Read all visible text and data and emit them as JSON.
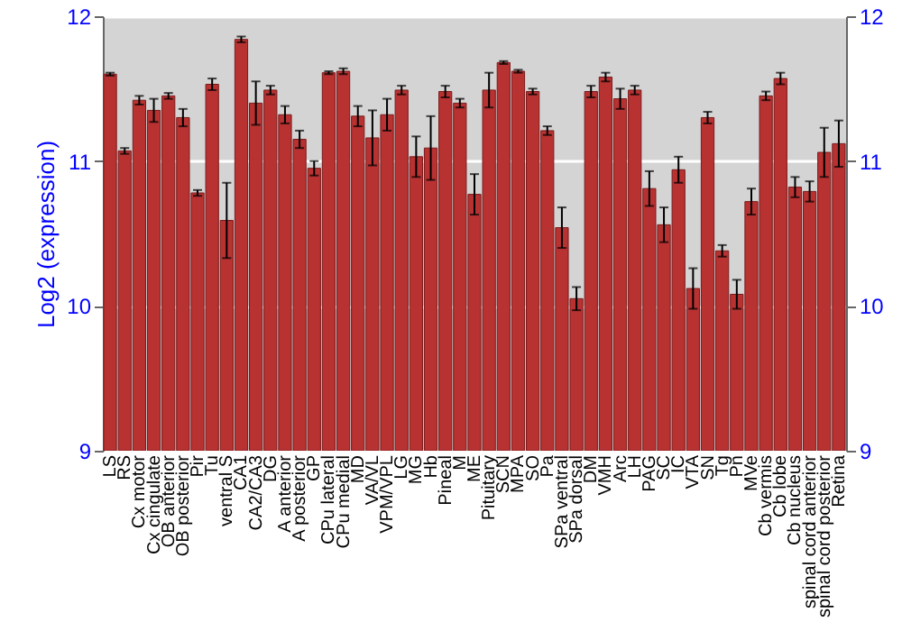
{
  "chart_data": {
    "type": "bar",
    "ylabel": "Log2 (expression)",
    "categories": [
      "LS",
      "RS",
      "Cx motor",
      "Cx cingulate",
      "OB anterior",
      "OB posterior",
      "Pir",
      "Tu",
      "ventral S",
      "CA1",
      "CA2/CA3",
      "DG",
      "A anterior",
      "A posterior",
      "GP",
      "CPu lateral",
      "CPu medial",
      "MD",
      "VA/VL",
      "VPM/VPL",
      "LG",
      "MG",
      "Hb",
      "Pineal",
      "M",
      "ME",
      "Pituitary",
      "SCN",
      "MPA",
      "SO",
      "Pa",
      "SPa ventral",
      "SPa dorsal",
      "DM",
      "VMH",
      "Arc",
      "LH",
      "PAG",
      "SC",
      "IC",
      "VTA",
      "SN",
      "Tg",
      "Pn",
      "MVe",
      "Cb vermis",
      "Cb lobe",
      "Cb nucleus",
      "spinal cord anterior",
      "spinal cord posterior",
      "Retina"
    ],
    "values": [
      11.6,
      11.07,
      11.42,
      11.35,
      11.45,
      11.3,
      10.78,
      11.53,
      10.59,
      11.84,
      11.4,
      11.49,
      11.32,
      11.15,
      10.95,
      11.61,
      11.62,
      11.31,
      11.16,
      11.32,
      11.49,
      11.03,
      11.09,
      11.48,
      11.4,
      10.77,
      11.49,
      11.68,
      11.62,
      11.48,
      11.21,
      10.54,
      10.05,
      11.48,
      11.58,
      11.43,
      11.49,
      10.81,
      10.56,
      10.94,
      10.12,
      11.3,
      10.38,
      10.08,
      10.72,
      11.45,
      11.57,
      10.82,
      10.79,
      11.06,
      11.12
    ],
    "errors": [
      0.01,
      0.02,
      0.03,
      0.08,
      0.02,
      0.06,
      0.02,
      0.04,
      0.26,
      0.02,
      0.15,
      0.03,
      0.06,
      0.06,
      0.05,
      0.01,
      0.02,
      0.07,
      0.19,
      0.11,
      0.03,
      0.14,
      0.22,
      0.04,
      0.03,
      0.14,
      0.12,
      0.01,
      0.01,
      0.02,
      0.03,
      0.14,
      0.08,
      0.04,
      0.03,
      0.07,
      0.03,
      0.12,
      0.12,
      0.09,
      0.14,
      0.04,
      0.04,
      0.1,
      0.09,
      0.03,
      0.04,
      0.07,
      0.07,
      0.17,
      0.16
    ],
    "color": "#b83232",
    "ylim": [
      9,
      12
    ],
    "yticks": [
      9,
      10,
      11,
      12
    ],
    "y2lim": [
      9,
      12
    ],
    "y2ticks": [
      9,
      10,
      11,
      12
    ],
    "grid": "y"
  }
}
